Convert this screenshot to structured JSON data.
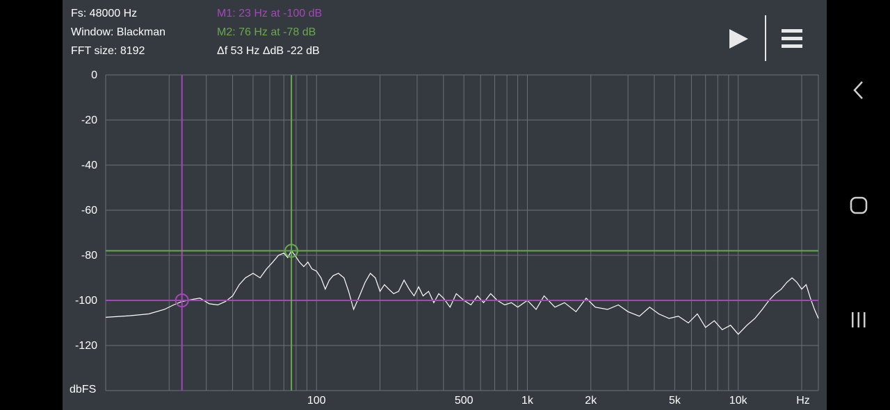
{
  "info": {
    "fs": "Fs: 48000 Hz",
    "window": "Window: Blackman",
    "fft_size": "FFT size: 8192"
  },
  "markers": {
    "m1_text": "M1: 23 Hz at -100 dB",
    "m2_text": "M2: 76 Hz at -78 dB",
    "delta_text": "Δf 53 Hz ΔdB -22 dB",
    "m1_color": "#a547b8",
    "m2_color": "#6aa84f"
  },
  "toolbar": {
    "play_icon": "play-icon",
    "menu_icon": "menu-icon"
  },
  "system_nav": {
    "back_icon": "back-icon",
    "home_icon": "home-icon",
    "recents_icon": "recents-icon"
  },
  "colors": {
    "background": "#343a40",
    "grid": "#6c7176",
    "trace": "#ffffff"
  },
  "chart_data": {
    "type": "line",
    "xscale": "log",
    "xlim": [
      10,
      24000
    ],
    "ylim": [
      -140,
      0
    ],
    "ylabel": "dbFS",
    "xlabel": "Hz",
    "yticks": [
      "0",
      "-20",
      "-40",
      "-60",
      "-80",
      "-100",
      "-120"
    ],
    "ytick_values": [
      0,
      -20,
      -40,
      -60,
      -80,
      -100,
      -120
    ],
    "xticks": [
      "100",
      "500",
      "1k",
      "2k",
      "5k",
      "10k",
      "Hz"
    ],
    "xtick_values": [
      100,
      500,
      1000,
      2000,
      5000,
      10000,
      20000
    ],
    "grid": true,
    "markers": [
      {
        "name": "M1",
        "x": 23,
        "y": -100
      },
      {
        "name": "M2",
        "x": 76,
        "y": -78
      }
    ],
    "series": [
      {
        "x": [
          10,
          13,
          16,
          19,
          21,
          23,
          26,
          28,
          31,
          34,
          37,
          40,
          43,
          46,
          50,
          54,
          58,
          62,
          66,
          70,
          73,
          76,
          79,
          83,
          87,
          91,
          95,
          100,
          105,
          110,
          115,
          120,
          127,
          135,
          142,
          150,
          160,
          170,
          180,
          190,
          200,
          210,
          220,
          232,
          245,
          260,
          275,
          290,
          305,
          320,
          340,
          360,
          380,
          400,
          430,
          460,
          500,
          540,
          580,
          620,
          670,
          720,
          780,
          840,
          900,
          1000,
          1100,
          1200,
          1350,
          1500,
          1700,
          1900,
          2100,
          2400,
          2700,
          3000,
          3400,
          3800,
          4200,
          4700,
          5200,
          5800,
          6400,
          7000,
          7700,
          8400,
          9200,
          10000,
          11000,
          12000,
          13000,
          14000,
          15000,
          16000,
          17000,
          18000,
          19000,
          20000,
          21000,
          22000,
          23000,
          24000
        ],
        "y": [
          -107.5,
          -106.8,
          -106,
          -104,
          -102,
          -100.5,
          -99.5,
          -99,
          -101.5,
          -102,
          -100.5,
          -98,
          -93,
          -90,
          -88,
          -90,
          -86,
          -83,
          -80,
          -79,
          -81,
          -78,
          -80,
          -83,
          -85,
          -83,
          -86,
          -87,
          -90,
          -95,
          -91,
          -89,
          -88,
          -90,
          -96,
          -104,
          -98,
          -92,
          -88,
          -90,
          -96,
          -93,
          -95,
          -97,
          -96,
          -91,
          -95,
          -98,
          -94,
          -98,
          -96,
          -101,
          -97,
          -99,
          -103,
          -97,
          -100,
          -102,
          -98,
          -101,
          -97,
          -100,
          -102,
          -101,
          -103,
          -100,
          -104,
          -98,
          -103,
          -101,
          -105,
          -99,
          -103,
          -104,
          -102,
          -105,
          -107,
          -103,
          -106,
          -108,
          -107,
          -110,
          -106,
          -112,
          -109,
          -113,
          -111,
          -115,
          -111,
          -108,
          -104,
          -100,
          -97,
          -95,
          -92,
          -90,
          -92,
          -95,
          -93,
          -99,
          -104,
          -108
        ]
      }
    ]
  }
}
